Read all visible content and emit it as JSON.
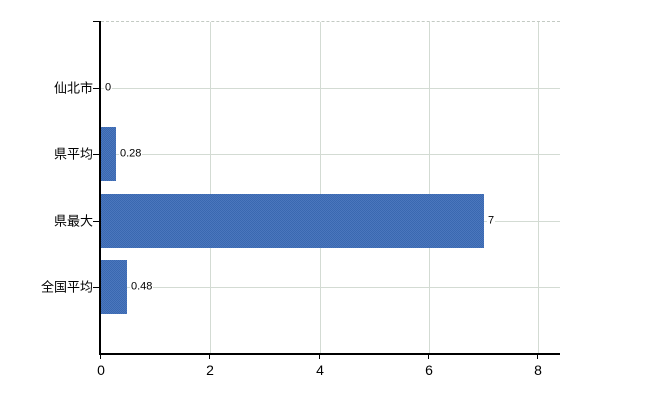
{
  "chart_data": {
    "type": "bar",
    "orientation": "horizontal",
    "title": "",
    "xlabel": "",
    "ylabel": "",
    "categories": [
      "仙北市",
      "県平均",
      "県最大",
      "全国平均"
    ],
    "values": [
      0,
      0.28,
      7,
      0.48
    ],
    "value_labels": [
      "0",
      "0.28",
      "7",
      "0.48"
    ],
    "xlim": [
      0,
      8.4
    ],
    "xticks": [
      0,
      2,
      4,
      6,
      8
    ],
    "xtick_labels": [
      "0",
      "2",
      "4",
      "6",
      "8"
    ],
    "grid": "on",
    "legend": "none",
    "colors": {
      "bar_dark": "#3a68b0",
      "bar_light": "#4b77bd",
      "bar_average": "#4170b6",
      "grid": "#d3dbd3",
      "frame_dash": "#c3cac3",
      "axis": "#000000",
      "text": "#000000",
      "background": "#ffffff"
    }
  }
}
